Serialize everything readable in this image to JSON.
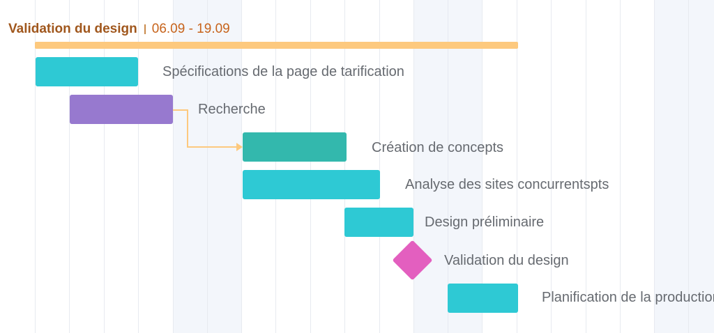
{
  "project": {
    "title": "Validation du design",
    "date_range": "06.09 - 19.09",
    "summary_color": "#fdc97e"
  },
  "tasks": [
    {
      "name": "Spécifications de la page de tarification",
      "color": "#2ec9d4"
    },
    {
      "name": "Recherche",
      "color": "#9779cf"
    },
    {
      "name": "Création de concepts",
      "color": "#33b8ad"
    },
    {
      "name": "Analyse des sites concurrentspts",
      "color": "#2ec9d4"
    },
    {
      "name": "Design préliminaire",
      "color": "#2ec9d4"
    },
    {
      "name": "Validation du design",
      "color": "#e35fbf",
      "milestone": true
    },
    {
      "name": "Planification de la production",
      "color": "#2ec9d4"
    }
  ],
  "dependency": {
    "from": "Recherche",
    "to": "Création de concepts",
    "color": "#fdc97e"
  }
}
